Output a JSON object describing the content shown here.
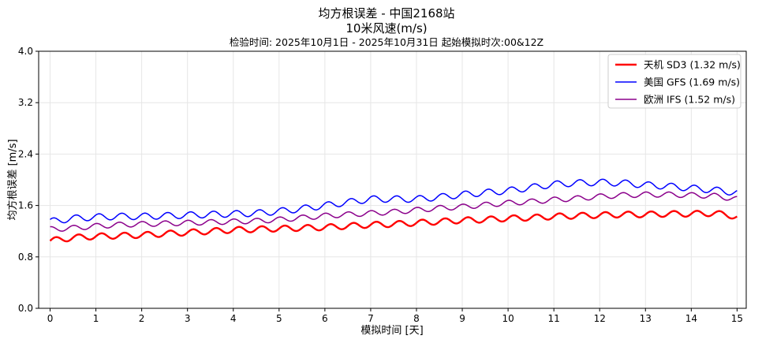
{
  "chart_data": {
    "type": "line",
    "title": "均方根误差 - 中国2168站",
    "subtitle": "10米风速(m/s)",
    "caption": "检验时间: 2025年10月1日 - 2025年10月31日 起始模拟时次:00&12Z",
    "xlabel": "模拟时间 [天]",
    "ylabel": "均方根误差 [m/s]",
    "xlim": [
      -0.25,
      15.2
    ],
    "ylim": [
      0.0,
      4.0
    ],
    "xticks": [
      "0",
      "1",
      "2",
      "3",
      "4",
      "5",
      "6",
      "7",
      "8",
      "9",
      "10",
      "11",
      "12",
      "13",
      "14",
      "15"
    ],
    "yticks": [
      "0.0",
      "0.8",
      "1.6",
      "2.4",
      "3.2",
      "4.0"
    ],
    "grid": true,
    "legend_position": "top-right",
    "series": [
      {
        "name": "天机 SD3 (1.32 m/s)",
        "color": "#ff0000",
        "x": [
          0.0,
          0.5,
          1.0,
          1.5,
          2.0,
          2.5,
          3.0,
          3.5,
          4.0,
          4.5,
          5.0,
          5.5,
          6.0,
          6.5,
          7.0,
          7.5,
          8.0,
          8.5,
          9.0,
          9.5,
          10.0,
          10.5,
          11.0,
          11.5,
          12.0,
          12.5,
          13.0,
          13.5,
          14.0,
          14.5,
          15.0
        ],
        "values": [
          1.05,
          1.1,
          1.12,
          1.13,
          1.14,
          1.16,
          1.18,
          1.2,
          1.22,
          1.23,
          1.24,
          1.25,
          1.26,
          1.28,
          1.3,
          1.31,
          1.33,
          1.35,
          1.37,
          1.38,
          1.4,
          1.41,
          1.43,
          1.44,
          1.45,
          1.46,
          1.46,
          1.47,
          1.47,
          1.48,
          1.43
        ]
      },
      {
        "name": "美国 GFS (1.69 m/s)",
        "color": "#0000ff",
        "x": [
          0.0,
          0.5,
          1.0,
          1.5,
          2.0,
          2.5,
          3.0,
          3.5,
          4.0,
          4.5,
          5.0,
          5.5,
          6.0,
          6.5,
          7.0,
          7.5,
          8.0,
          8.5,
          9.0,
          9.5,
          10.0,
          10.5,
          11.0,
          11.5,
          12.0,
          12.5,
          13.0,
          13.5,
          14.0,
          14.5,
          15.0
        ],
        "values": [
          1.35,
          1.4,
          1.42,
          1.43,
          1.43,
          1.44,
          1.45,
          1.46,
          1.47,
          1.48,
          1.51,
          1.55,
          1.6,
          1.65,
          1.7,
          1.7,
          1.7,
          1.73,
          1.77,
          1.8,
          1.83,
          1.88,
          1.93,
          1.95,
          1.96,
          1.95,
          1.92,
          1.9,
          1.87,
          1.84,
          1.8
        ]
      },
      {
        "name": "欧洲 IFS (1.52 m/s)",
        "color": "#8b008b",
        "x": [
          0.0,
          0.5,
          1.0,
          1.5,
          2.0,
          2.5,
          3.0,
          3.5,
          4.0,
          4.5,
          5.0,
          5.5,
          6.0,
          6.5,
          7.0,
          7.5,
          8.0,
          8.5,
          9.0,
          9.5,
          10.0,
          10.5,
          11.0,
          11.5,
          12.0,
          12.5,
          13.0,
          13.5,
          14.0,
          14.5,
          15.0
        ],
        "values": [
          1.23,
          1.25,
          1.28,
          1.3,
          1.31,
          1.32,
          1.33,
          1.34,
          1.35,
          1.36,
          1.38,
          1.41,
          1.44,
          1.46,
          1.48,
          1.5,
          1.53,
          1.56,
          1.58,
          1.61,
          1.64,
          1.66,
          1.69,
          1.71,
          1.74,
          1.76,
          1.77,
          1.77,
          1.76,
          1.75,
          1.7
        ]
      }
    ]
  }
}
